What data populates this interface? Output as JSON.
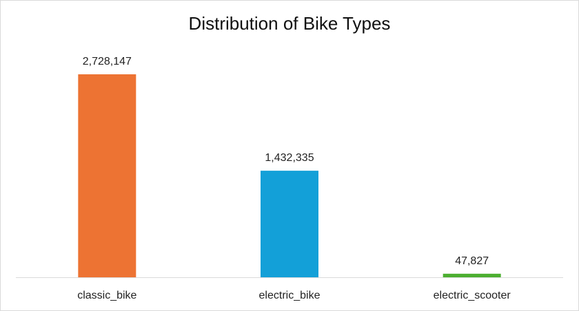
{
  "chart_data": {
    "type": "bar",
    "title": "Distribution of Bike Types",
    "categories": [
      "classic_bike",
      "electric_bike",
      "electric_scooter"
    ],
    "values": [
      2728147,
      1432335,
      47827
    ],
    "value_labels": [
      "2,728,147",
      "1,432,335",
      "47,827"
    ],
    "colors": [
      "#ed7333",
      "#13a0d8",
      "#4caf30"
    ],
    "xlabel": "",
    "ylabel": "",
    "ylim": [
      0,
      2728147
    ],
    "grid": false,
    "legend": "none"
  }
}
